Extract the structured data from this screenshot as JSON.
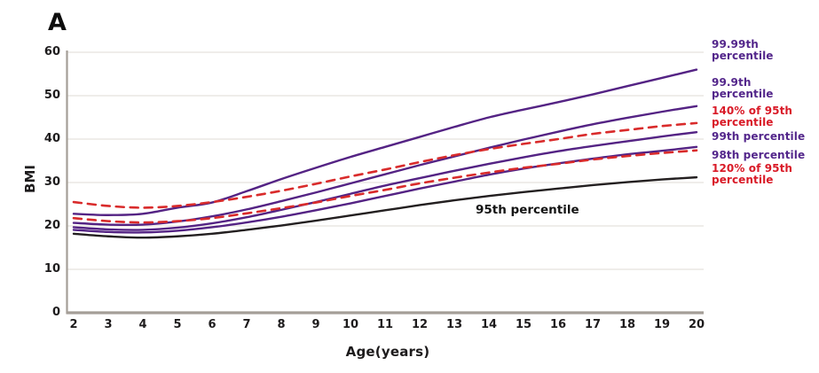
{
  "panel_label": "A",
  "axes": {
    "x_label": "Age(years)",
    "y_label": "BMI",
    "x_ticks": [
      2,
      3,
      4,
      5,
      6,
      7,
      8,
      9,
      10,
      11,
      12,
      13,
      14,
      15,
      16,
      17,
      18,
      19,
      20
    ],
    "y_ticks": [
      0,
      10,
      20,
      30,
      40,
      50,
      60
    ]
  },
  "annotation": {
    "label": "95th percentile"
  },
  "legend": {
    "items": [
      {
        "label": "99.99th\npercentile",
        "color": "#53268b"
      },
      {
        "label": "99.9th\npercentile",
        "color": "#53268b"
      },
      {
        "label": "140% of  95th\npercentile",
        "color": "#d91a27"
      },
      {
        "label": "99th percentile",
        "color": "#53268b"
      },
      {
        "label": "98th percentile",
        "color": "#53268b"
      },
      {
        "label": "120% of 95th\npercentile",
        "color": "#d91a27"
      }
    ]
  },
  "colors": {
    "purple_line": "#542384",
    "red_line": "#d92b2b",
    "black_line": "#231f20",
    "axis": "#a49e97",
    "gridline": "#eae7e3"
  },
  "chart_data": {
    "type": "line",
    "title": "",
    "xlabel": "Age(years)",
    "ylabel": "BMI",
    "xlim": [
      2,
      20
    ],
    "ylim": [
      0,
      60
    ],
    "grid": "horizontal",
    "legend_position": "right",
    "x": [
      2,
      3,
      4,
      5,
      6,
      7,
      8,
      9,
      10,
      11,
      12,
      13,
      14,
      15,
      16,
      17,
      18,
      19,
      20
    ],
    "series": [
      {
        "name": "99.99th percentile",
        "color": "#542384",
        "style": "solid",
        "values": [
          22.8,
          22.5,
          22.8,
          24.2,
          25.4,
          28.0,
          30.8,
          33.4,
          35.9,
          38.2,
          40.5,
          42.8,
          45.0,
          46.8,
          48.5,
          50.3,
          52.2,
          54.1,
          56.0
        ]
      },
      {
        "name": "99.9th percentile",
        "color": "#542384",
        "style": "solid",
        "values": [
          20.7,
          20.3,
          20.3,
          21.0,
          22.2,
          23.8,
          25.7,
          27.7,
          29.8,
          31.9,
          34.0,
          36.0,
          38.0,
          39.9,
          41.7,
          43.4,
          44.9,
          46.3,
          47.6
        ]
      },
      {
        "name": "99th percentile",
        "color": "#542384",
        "style": "solid",
        "values": [
          19.7,
          19.2,
          19.1,
          19.6,
          20.6,
          22.0,
          23.7,
          25.5,
          27.4,
          29.3,
          31.0,
          32.7,
          34.3,
          35.8,
          37.2,
          38.4,
          39.5,
          40.6,
          41.6
        ]
      },
      {
        "name": "98th percentile",
        "color": "#542384",
        "style": "solid",
        "values": [
          19.1,
          18.6,
          18.5,
          18.9,
          19.7,
          20.8,
          22.1,
          23.6,
          25.2,
          26.9,
          28.6,
          30.2,
          31.8,
          33.2,
          34.4,
          35.5,
          36.5,
          37.3,
          38.2
        ]
      },
      {
        "name": "140% of 95th percentile",
        "color": "#d92b2b",
        "style": "dashed",
        "values": [
          25.5,
          24.6,
          24.2,
          24.6,
          25.5,
          26.7,
          28.1,
          29.7,
          31.4,
          33.0,
          34.7,
          36.3,
          37.7,
          38.9,
          40.0,
          41.2,
          42.1,
          43.0,
          43.7
        ]
      },
      {
        "name": "120% of 95th percentile",
        "color": "#d92b2b",
        "style": "dashed",
        "values": [
          21.8,
          21.1,
          20.8,
          21.1,
          21.8,
          22.9,
          24.1,
          25.4,
          26.9,
          28.3,
          29.8,
          31.1,
          32.3,
          33.4,
          34.3,
          35.3,
          36.1,
          36.8,
          37.4
        ]
      },
      {
        "name": "95th percentile",
        "color": "#231f20",
        "style": "solid",
        "values": [
          18.2,
          17.6,
          17.3,
          17.6,
          18.2,
          19.1,
          20.1,
          21.2,
          22.4,
          23.6,
          24.8,
          25.9,
          26.9,
          27.8,
          28.6,
          29.4,
          30.1,
          30.7,
          31.2
        ]
      }
    ]
  }
}
